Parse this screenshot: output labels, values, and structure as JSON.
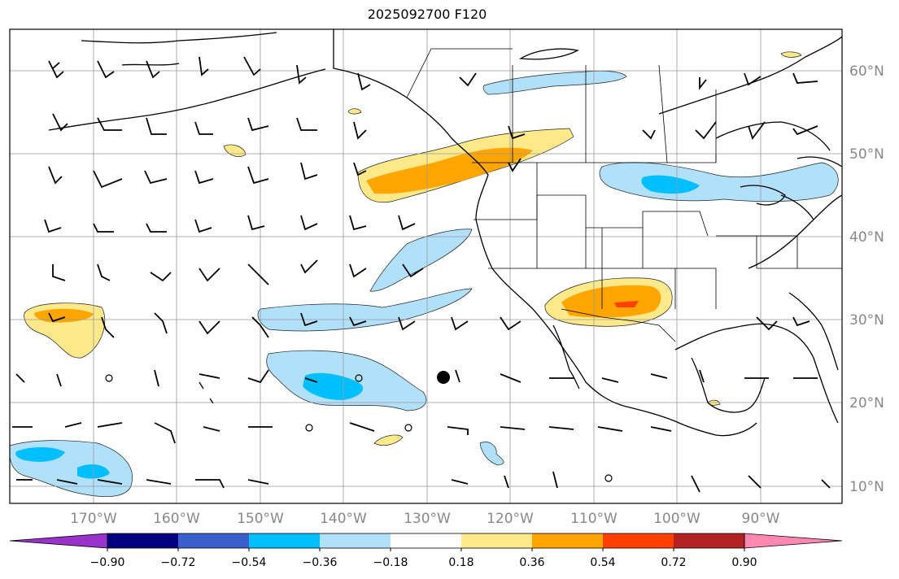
{
  "title": "2025092700 F120",
  "lat_labels": [
    "60°N",
    "50°N",
    "40°N",
    "30°N",
    "20°N",
    "10°N"
  ],
  "lon_labels": [
    "170°W",
    "160°W",
    "150°W",
    "140°W",
    "130°W",
    "120°W",
    "110°W",
    "100°W",
    "90°W"
  ],
  "colorbar": {
    "ticks": [
      "−0.90",
      "−0.72",
      "−0.54",
      "−0.36",
      "−0.18",
      "0.18",
      "0.36",
      "0.54",
      "0.72",
      "0.90"
    ],
    "colors": [
      "#9933cc",
      "#000080",
      "#3a5fcd",
      "#00bfff",
      "#b0e0fa",
      "#ffffff",
      "#fde98a",
      "#ffa500",
      "#ff4000",
      "#b22222",
      "#ff88b0"
    ]
  }
}
